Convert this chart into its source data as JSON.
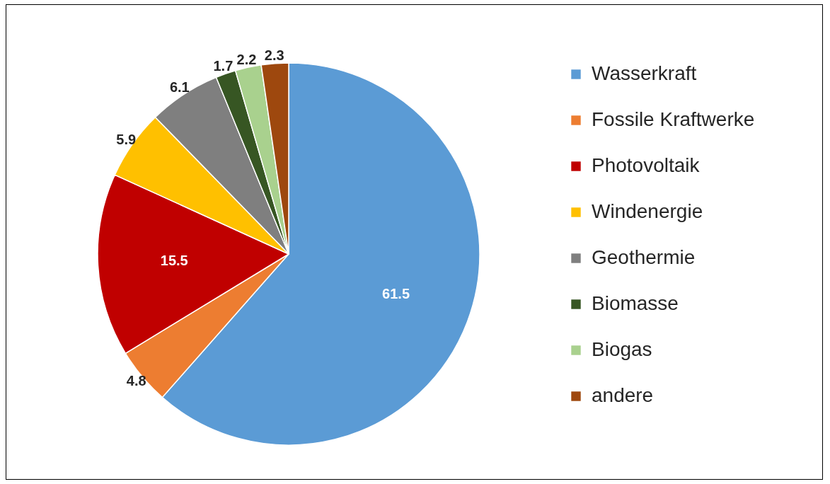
{
  "chart_data": {
    "type": "pie",
    "categories": [
      "Wasserkraft",
      "Fossile Kraftwerke",
      "Photovoltaik",
      "Windenergie",
      "Geothermie",
      "Biomasse",
      "Biogas",
      "andere"
    ],
    "values": [
      61.5,
      4.8,
      15.5,
      5.9,
      6.1,
      1.7,
      2.2,
      2.3
    ],
    "colors": [
      "#5b9bd5",
      "#ed7d31",
      "#c00000",
      "#ffc000",
      "#7f7f7f",
      "#375623",
      "#a9d18e",
      "#9e480e"
    ],
    "data_labels": true,
    "legend": "right"
  }
}
